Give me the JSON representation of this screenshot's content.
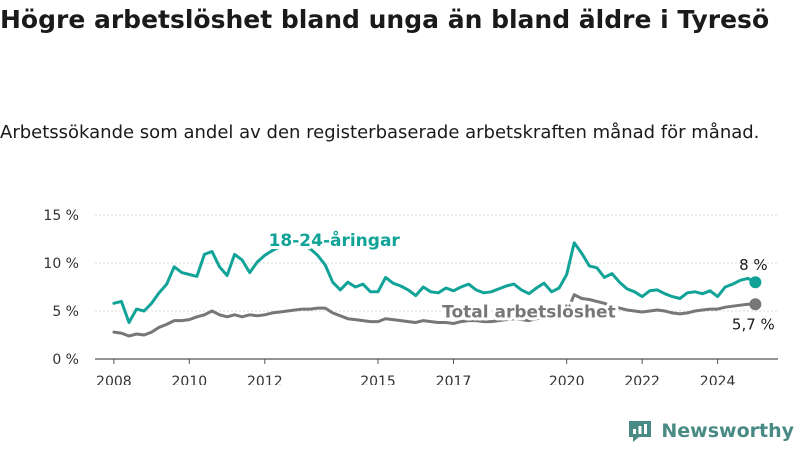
{
  "title": "Högre arbetslöshet bland unga än bland äldre i Tyresö",
  "subtitle": "Arbetssökande som andel av den registerbaserade arbetskraften månad för månad.",
  "brand": "Newsworthy",
  "colors": {
    "youth": "#11a398",
    "total": "#777777",
    "grid": "#d9d9d9"
  },
  "chart_data": {
    "type": "line",
    "title": "Högre arbetslöshet bland unga än bland äldre i Tyresö",
    "subtitle": "Arbetssökande som andel av den registerbaserade arbetskraften månad för månad.",
    "xlabel": "",
    "ylabel": "",
    "ylim": [
      0,
      15
    ],
    "xlim": [
      2007.5,
      2025.6
    ],
    "grid": "horizontal",
    "y_ticks": [
      0,
      5,
      10,
      15
    ],
    "y_tick_labels": [
      "0 %",
      "5 %",
      "10 %",
      "15 %"
    ],
    "x_ticks": [
      2008,
      2010,
      2012,
      2015,
      2017,
      2020,
      2022,
      2024
    ],
    "x_tick_labels": [
      "2008",
      "2010",
      "2012",
      "2015",
      "2017",
      "2020",
      "2022",
      "2024"
    ],
    "series": [
      {
        "name": "18-24-åringar",
        "label": "18-24-åringar",
        "end_label": "8 %",
        "x": [
          2008.0,
          2008.2,
          2008.4,
          2008.6,
          2008.8,
          2009.0,
          2009.2,
          2009.4,
          2009.6,
          2009.8,
          2010.0,
          2010.2,
          2010.4,
          2010.6,
          2010.8,
          2011.0,
          2011.2,
          2011.4,
          2011.6,
          2011.8,
          2012.0,
          2012.2,
          2012.4,
          2012.6,
          2012.8,
          2013.0,
          2013.2,
          2013.4,
          2013.6,
          2013.8,
          2014.0,
          2014.2,
          2014.4,
          2014.6,
          2014.8,
          2015.0,
          2015.2,
          2015.4,
          2015.6,
          2015.8,
          2016.0,
          2016.2,
          2016.4,
          2016.6,
          2016.8,
          2017.0,
          2017.2,
          2017.4,
          2017.6,
          2017.8,
          2018.0,
          2018.2,
          2018.4,
          2018.6,
          2018.8,
          2019.0,
          2019.2,
          2019.4,
          2019.6,
          2019.8,
          2020.0,
          2020.2,
          2020.4,
          2020.6,
          2020.8,
          2021.0,
          2021.2,
          2021.4,
          2021.6,
          2021.8,
          2022.0,
          2022.2,
          2022.4,
          2022.6,
          2022.8,
          2023.0,
          2023.2,
          2023.4,
          2023.6,
          2023.8,
          2024.0,
          2024.2,
          2024.4,
          2024.6,
          2024.8,
          2025.0
        ],
        "values": [
          5.8,
          6.0,
          3.8,
          5.2,
          5.0,
          5.8,
          6.9,
          7.8,
          9.6,
          9.0,
          8.8,
          8.6,
          10.9,
          11.2,
          9.6,
          8.7,
          10.9,
          10.3,
          9.0,
          10.1,
          10.8,
          11.3,
          11.7,
          11.9,
          12.0,
          11.8,
          11.5,
          10.8,
          9.8,
          8.0,
          7.2,
          8.0,
          7.5,
          7.8,
          7.0,
          7.0,
          8.5,
          7.9,
          7.6,
          7.2,
          6.6,
          7.5,
          7.0,
          6.9,
          7.4,
          7.1,
          7.5,
          7.8,
          7.2,
          6.9,
          7.0,
          7.3,
          7.6,
          7.8,
          7.2,
          6.8,
          7.4,
          7.9,
          7.0,
          7.4,
          8.8,
          12.1,
          11.0,
          9.7,
          9.5,
          8.5,
          8.9,
          8.0,
          7.3,
          7.0,
          6.5,
          7.1,
          7.2,
          6.8,
          6.5,
          6.3,
          6.9,
          7.0,
          6.8,
          7.1,
          6.5,
          7.5,
          7.8,
          8.2,
          8.4,
          8.0
        ]
      },
      {
        "name": "Total arbetslöshet",
        "label": "Total arbetslöshet",
        "end_label": "5,7 %",
        "x": [
          2008.0,
          2008.2,
          2008.4,
          2008.6,
          2008.8,
          2009.0,
          2009.2,
          2009.4,
          2009.6,
          2009.8,
          2010.0,
          2010.2,
          2010.4,
          2010.6,
          2010.8,
          2011.0,
          2011.2,
          2011.4,
          2011.6,
          2011.8,
          2012.0,
          2012.2,
          2012.4,
          2012.6,
          2012.8,
          2013.0,
          2013.2,
          2013.4,
          2013.6,
          2013.8,
          2014.0,
          2014.2,
          2014.4,
          2014.6,
          2014.8,
          2015.0,
          2015.2,
          2015.4,
          2015.6,
          2015.8,
          2016.0,
          2016.2,
          2016.4,
          2016.6,
          2016.8,
          2017.0,
          2017.2,
          2017.4,
          2017.6,
          2017.8,
          2018.0,
          2018.2,
          2018.4,
          2018.6,
          2018.8,
          2019.0,
          2019.2,
          2019.4,
          2019.6,
          2019.8,
          2020.0,
          2020.2,
          2020.4,
          2020.6,
          2020.8,
          2021.0,
          2021.2,
          2021.4,
          2021.6,
          2021.8,
          2022.0,
          2022.2,
          2022.4,
          2022.6,
          2022.8,
          2023.0,
          2023.2,
          2023.4,
          2023.6,
          2023.8,
          2024.0,
          2024.2,
          2024.4,
          2024.6,
          2024.8,
          2025.0
        ],
        "values": [
          2.8,
          2.7,
          2.4,
          2.6,
          2.5,
          2.8,
          3.3,
          3.6,
          4.0,
          4.0,
          4.1,
          4.4,
          4.6,
          5.0,
          4.6,
          4.4,
          4.6,
          4.4,
          4.6,
          4.5,
          4.6,
          4.8,
          4.9,
          5.0,
          5.1,
          5.2,
          5.2,
          5.3,
          5.3,
          4.8,
          4.5,
          4.2,
          4.1,
          4.0,
          3.9,
          3.9,
          4.2,
          4.1,
          4.0,
          3.9,
          3.8,
          4.0,
          3.9,
          3.8,
          3.8,
          3.7,
          3.9,
          4.0,
          4.0,
          3.9,
          3.9,
          4.0,
          4.1,
          4.2,
          4.1,
          4.0,
          4.2,
          4.3,
          4.2,
          4.3,
          4.8,
          6.7,
          6.3,
          6.2,
          6.0,
          5.8,
          5.5,
          5.3,
          5.1,
          5.0,
          4.9,
          5.0,
          5.1,
          5.0,
          4.8,
          4.7,
          4.8,
          5.0,
          5.1,
          5.2,
          5.2,
          5.4,
          5.5,
          5.6,
          5.7,
          5.7
        ]
      }
    ]
  }
}
